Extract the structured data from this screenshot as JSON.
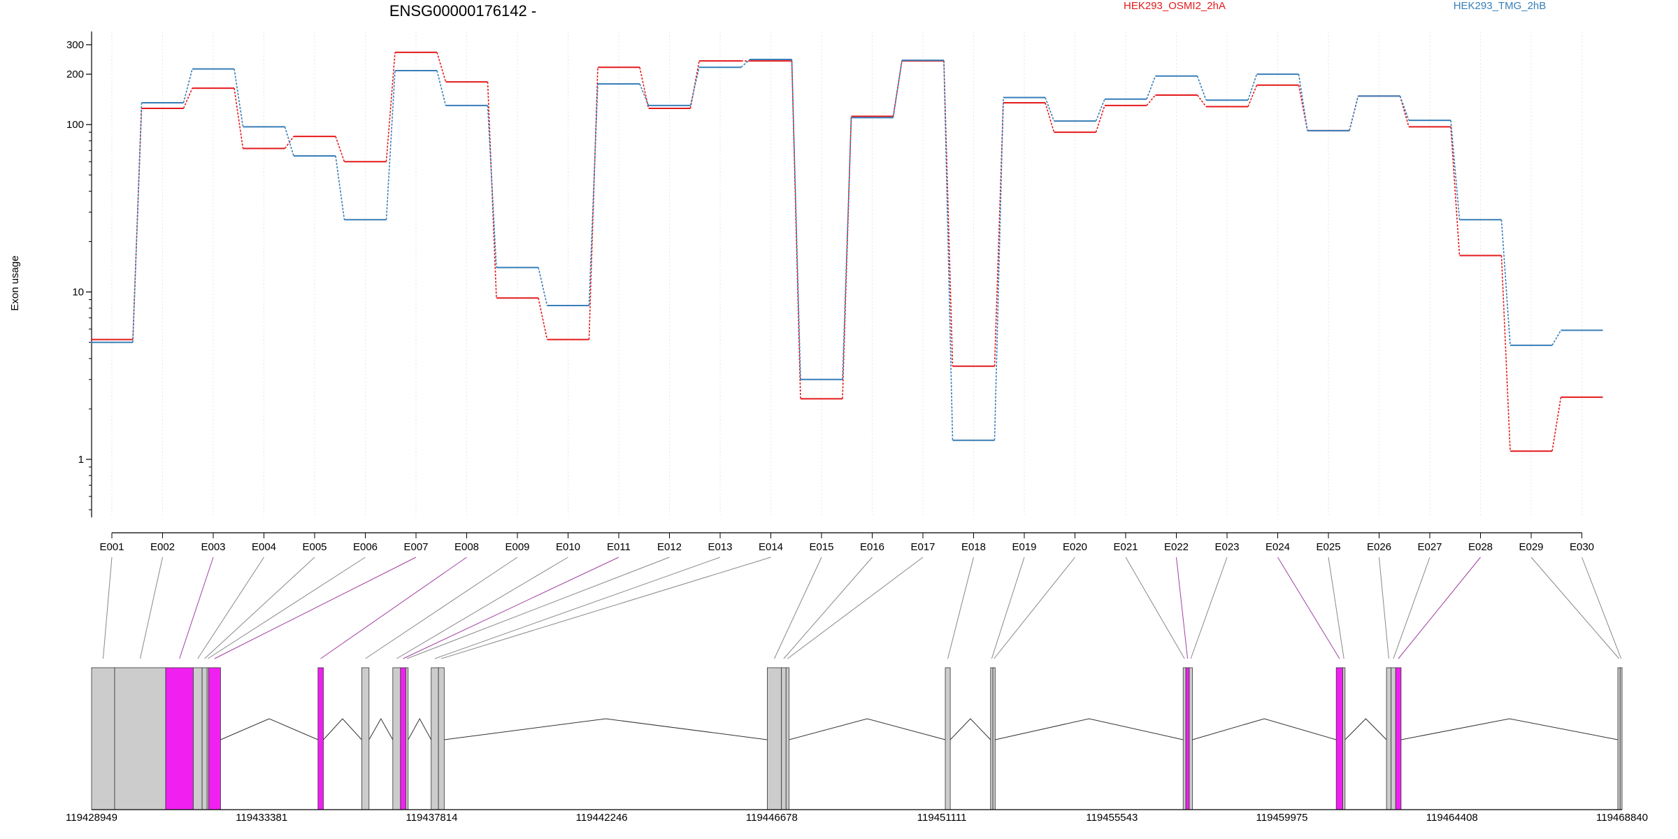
{
  "title": "ENSG00000176142 -",
  "legend": [
    {
      "label": "HEK293_OSMI2_2hA",
      "color": "#e41a1c"
    },
    {
      "label": "HEK293_TMG_2hB",
      "color": "#377eb8"
    }
  ],
  "ylabel": "Exon usage",
  "exon_colors": {
    "normal": "#cccccc",
    "significant": "#f020f0",
    "outline": "#333333"
  },
  "chart_data": {
    "type": "line",
    "title": "ENSG00000176142 -",
    "xlabel": "",
    "ylabel": "Exon usage",
    "y_scale": "log",
    "ylim": [
      0.45,
      360
    ],
    "y_ticks": [
      1,
      10,
      100,
      200,
      300
    ],
    "y_tick_labels": [
      "1",
      "10",
      "100",
      "200",
      "300"
    ],
    "grid": "vertical dotted lines at exon positions",
    "legend_placement": "top, above plot",
    "categories": [
      "E001",
      "E002",
      "E003",
      "E004",
      "E005",
      "E006",
      "E007",
      "E008",
      "E009",
      "E010",
      "E011",
      "E012",
      "E013",
      "E014",
      "E015",
      "E016",
      "E017",
      "E018",
      "E019",
      "E020",
      "E021",
      "E022",
      "E023",
      "E024",
      "E025",
      "E026",
      "E027",
      "E028",
      "E029",
      "E030"
    ],
    "series": [
      {
        "name": "HEK293_OSMI2_2hA",
        "color": "#e41a1c",
        "values": [
          5.2,
          125,
          165,
          72,
          85,
          60,
          270,
          180,
          9.2,
          5.2,
          220,
          125,
          240,
          240,
          2.3,
          112,
          240,
          3.6,
          135,
          90,
          130,
          150,
          128,
          172,
          92,
          148,
          97,
          16.5,
          1.12,
          2.35
        ]
      },
      {
        "name": "HEK293_TMG_2hB",
        "color": "#377eb8",
        "values": [
          5.0,
          135,
          215,
          97,
          65,
          27,
          210,
          130,
          14,
          8.3,
          175,
          130,
          220,
          245,
          3.0,
          110,
          242,
          1.3,
          145,
          105,
          142,
          195,
          140,
          200,
          92,
          148,
          106,
          27,
          4.8,
          5.9
        ]
      }
    ],
    "genomic_axis": {
      "tick_labels": [
        "119428949",
        "119433381",
        "119437814",
        "119442246",
        "119446678",
        "119451111",
        "119455543",
        "119459975",
        "119464408",
        "119468840"
      ],
      "range": [
        119428949,
        119468840
      ]
    },
    "exons": [
      {
        "id": "E001",
        "start": 119428949,
        "end": 119429550,
        "significant": false
      },
      {
        "id": "E002",
        "start": 119429550,
        "end": 119430880,
        "significant": false
      },
      {
        "id": "E003",
        "start": 119430880,
        "end": 119431600,
        "significant": true
      },
      {
        "id": "E004",
        "start": 119431600,
        "end": 119431830,
        "significant": false
      },
      {
        "id": "E005",
        "start": 119431830,
        "end": 119431960,
        "significant": false
      },
      {
        "id": "E006",
        "start": 119431960,
        "end": 119432000,
        "significant": false
      },
      {
        "id": "E007",
        "start": 119432000,
        "end": 119432310,
        "significant": true
      },
      {
        "id": "E008",
        "start": 119434850,
        "end": 119434990,
        "significant": true
      },
      {
        "id": "E009",
        "start": 119435990,
        "end": 119436180,
        "significant": false
      },
      {
        "id": "E010",
        "start": 119436800,
        "end": 119437000,
        "significant": false
      },
      {
        "id": "E011",
        "start": 119437000,
        "end": 119437140,
        "significant": true
      },
      {
        "id": "E012",
        "start": 119437140,
        "end": 119437200,
        "significant": false
      },
      {
        "id": "E013",
        "start": 119437800,
        "end": 119437990,
        "significant": false
      },
      {
        "id": "E014",
        "start": 119437990,
        "end": 119438140,
        "significant": false
      },
      {
        "id": "E015",
        "start": 119446560,
        "end": 119446930,
        "significant": false
      },
      {
        "id": "E016",
        "start": 119446930,
        "end": 119447050,
        "significant": false
      },
      {
        "id": "E017",
        "start": 119447050,
        "end": 119447130,
        "significant": false
      },
      {
        "id": "E018",
        "start": 119451200,
        "end": 119451330,
        "significant": false
      },
      {
        "id": "E019",
        "start": 119452380,
        "end": 119452440,
        "significant": false
      },
      {
        "id": "E020",
        "start": 119452440,
        "end": 119452500,
        "significant": false
      },
      {
        "id": "E021",
        "start": 119457400,
        "end": 119457470,
        "significant": false
      },
      {
        "id": "E022",
        "start": 119457470,
        "end": 119457560,
        "significant": true
      },
      {
        "id": "E023",
        "start": 119457560,
        "end": 119457640,
        "significant": false
      },
      {
        "id": "E024",
        "start": 119461390,
        "end": 119461560,
        "significant": true
      },
      {
        "id": "E025",
        "start": 119461560,
        "end": 119461620,
        "significant": false
      },
      {
        "id": "E026",
        "start": 119462700,
        "end": 119462820,
        "significant": false
      },
      {
        "id": "E027",
        "start": 119462820,
        "end": 119462940,
        "significant": false
      },
      {
        "id": "E028",
        "start": 119462940,
        "end": 119463080,
        "significant": true
      },
      {
        "id": "E029",
        "start": 119468730,
        "end": 119468790,
        "significant": false
      },
      {
        "id": "E030",
        "start": 119468790,
        "end": 119468840,
        "significant": false
      }
    ]
  }
}
